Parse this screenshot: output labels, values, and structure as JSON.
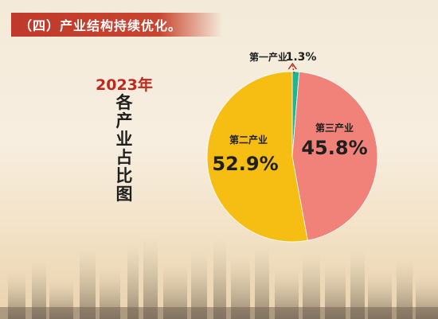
{
  "header": {
    "title": "（四）产业结构持续优化。"
  },
  "chart_data": {
    "type": "pie",
    "year_label": "2023年",
    "title": "各产业占比图",
    "categories": [
      "第一产业",
      "第二产业",
      "第三产业"
    ],
    "values": [
      1.3,
      52.9,
      45.8
    ],
    "value_labels": [
      "1.3%",
      "52.9%",
      "45.8%"
    ],
    "colors": [
      "#1fb58f",
      "#f6be12",
      "#f0827a"
    ],
    "title_color": "#c0281c",
    "header_color": "#c0392b"
  }
}
